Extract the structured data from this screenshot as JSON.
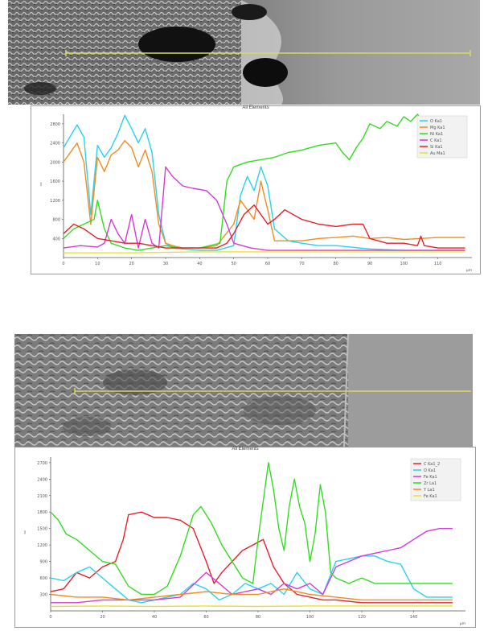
{
  "colors": {
    "red": "#e8202a",
    "cyan": "#26d4f0",
    "magenta": "#d63ad6",
    "green": "#33dd22",
    "orange": "#f28c20",
    "yellow": "#e8e030",
    "scanline": "#d8d860"
  },
  "chart_data": [
    {
      "type": "line",
      "title": "All Elements",
      "ylabel": "I",
      "xunit": "µm",
      "xlim": [
        0,
        120
      ],
      "ylim": [
        0,
        3000
      ],
      "xticks": [
        "0",
        "10",
        "20",
        "30",
        "40",
        "50",
        "60",
        "70",
        "80",
        "90",
        "100",
        "110"
      ],
      "yticks": [
        "400",
        "800",
        "1200",
        "1600",
        "2000",
        "2400",
        "2800"
      ],
      "legend_position": "top-right",
      "legend": [
        "O Ka1",
        "Mg Ka1",
        "Ni Ka1",
        "C Ka1",
        "Si Ka1",
        "Au Ma1"
      ],
      "series": [
        {
          "name": "C Ka1",
          "color": "cyan",
          "x": [
            0,
            4,
            6,
            8,
            10,
            12,
            14,
            16,
            18,
            20,
            22,
            24,
            26,
            28,
            30,
            32,
            35,
            40,
            45,
            50,
            52,
            54,
            56,
            58,
            60,
            62,
            66,
            70,
            75,
            80,
            90,
            100,
            110,
            118
          ],
          "y": [
            2300,
            2780,
            2520,
            900,
            2350,
            2100,
            2300,
            2600,
            2980,
            2700,
            2400,
            2700,
            2200,
            900,
            300,
            200,
            180,
            150,
            150,
            250,
            1300,
            1700,
            1400,
            1900,
            1500,
            600,
            350,
            300,
            250,
            250,
            180,
            150,
            150,
            150
          ]
        },
        {
          "name": "Au Ma1",
          "color": "orange",
          "x": [
            0,
            4,
            6,
            8,
            10,
            12,
            14,
            16,
            18,
            20,
            22,
            24,
            26,
            28,
            30,
            32,
            35,
            40,
            45,
            50,
            52,
            54,
            56,
            58,
            60,
            62,
            66,
            70,
            75,
            80,
            85,
            90,
            95,
            100,
            105,
            110,
            118
          ],
          "y": [
            2000,
            2400,
            2000,
            700,
            2100,
            1800,
            2150,
            2250,
            2450,
            2300,
            1900,
            2250,
            1800,
            700,
            300,
            250,
            200,
            200,
            250,
            700,
            1200,
            1000,
            800,
            1600,
            1000,
            350,
            350,
            350,
            400,
            420,
            450,
            400,
            420,
            380,
            400,
            420,
            420
          ]
        },
        {
          "name": "Si Ka1",
          "color": "green",
          "x": [
            0,
            3,
            6,
            9,
            10,
            12,
            14,
            18,
            22,
            26,
            30,
            34,
            40,
            46,
            48,
            50,
            54,
            58,
            62,
            66,
            70,
            75,
            80,
            82,
            84,
            86,
            88,
            90,
            93,
            95,
            98,
            100,
            102,
            104,
            106,
            108,
            110,
            113,
            116,
            118
          ],
          "y": [
            400,
            600,
            700,
            800,
            1200,
            600,
            300,
            200,
            150,
            200,
            250,
            200,
            200,
            300,
            1600,
            1900,
            2000,
            2050,
            2100,
            2200,
            2250,
            2350,
            2400,
            2200,
            2050,
            2300,
            2500,
            2800,
            2700,
            2850,
            2750,
            2950,
            2850,
            3000,
            2800,
            2900,
            2750,
            2900,
            2800,
            2850
          ]
        },
        {
          "name": "Ni Ka1",
          "color": "magenta",
          "x": [
            0,
            5,
            10,
            12,
            14,
            16,
            18,
            20,
            22,
            24,
            26,
            28,
            30,
            32,
            35,
            38,
            42,
            45,
            48,
            50,
            55,
            60,
            70,
            80,
            90,
            100,
            110,
            118
          ],
          "y": [
            200,
            250,
            220,
            300,
            800,
            500,
            300,
            900,
            200,
            800,
            300,
            200,
            1900,
            1700,
            1500,
            1450,
            1400,
            1200,
            700,
            300,
            200,
            150,
            150,
            150,
            150,
            150,
            150,
            150
          ]
        },
        {
          "name": "O Ka1",
          "color": "red",
          "x": [
            0,
            3,
            6,
            8,
            10,
            14,
            18,
            22,
            26,
            30,
            35,
            40,
            45,
            48,
            50,
            53,
            56,
            60,
            62,
            65,
            70,
            75,
            80,
            85,
            88,
            90,
            95,
            100,
            104,
            105,
            106,
            110,
            118
          ],
          "y": [
            500,
            700,
            600,
            500,
            400,
            350,
            300,
            300,
            250,
            200,
            200,
            200,
            200,
            300,
            500,
            900,
            1100,
            700,
            800,
            1000,
            800,
            700,
            650,
            700,
            700,
            400,
            300,
            300,
            250,
            450,
            250,
            200,
            200
          ]
        },
        {
          "name": "Mg Ka1",
          "color": "yellow",
          "x": [
            0,
            20,
            40,
            60,
            80,
            100,
            118
          ],
          "y": [
            100,
            100,
            120,
            120,
            120,
            120,
            120
          ]
        }
      ]
    },
    {
      "type": "line",
      "title": "All Elements",
      "ylabel": "I",
      "xunit": "µm",
      "xlim": [
        0,
        160
      ],
      "ylim": [
        0,
        2800
      ],
      "xticks": [
        "0",
        "20",
        "40",
        "60",
        "80",
        "100",
        "120",
        "140"
      ],
      "yticks": [
        "300",
        "600",
        "900",
        "1200",
        "1500",
        "1800",
        "2100",
        "2400",
        "2700"
      ],
      "legend_position": "top-right",
      "legend": [
        "C Ka1_2",
        "O Ka1",
        "Fe Ka1",
        "Zr La1",
        "Y La1",
        "Fe Ka1"
      ],
      "series": [
        {
          "name": "C Ka1_2",
          "color": "red",
          "x": [
            0,
            5,
            10,
            15,
            20,
            25,
            28,
            30,
            35,
            40,
            45,
            50,
            55,
            60,
            63,
            66,
            70,
            74,
            78,
            82,
            86,
            90,
            95,
            100,
            105,
            110,
            120,
            130,
            140,
            150,
            155
          ],
          "y": [
            350,
            400,
            700,
            600,
            800,
            900,
            1300,
            1750,
            1800,
            1700,
            1700,
            1650,
            1500,
            900,
            500,
            700,
            900,
            1100,
            1200,
            1300,
            800,
            500,
            300,
            250,
            200,
            200,
            150,
            150,
            150,
            150,
            150
          ]
        },
        {
          "name": "O Ka1",
          "color": "cyan",
          "x": [
            0,
            5,
            10,
            15,
            20,
            25,
            30,
            35,
            40,
            45,
            50,
            55,
            60,
            65,
            70,
            75,
            80,
            85,
            90,
            95,
            100,
            105,
            110,
            115,
            120,
            125,
            130,
            135,
            140,
            145,
            150,
            155
          ],
          "y": [
            600,
            550,
            700,
            800,
            600,
            400,
            200,
            150,
            200,
            250,
            300,
            500,
            400,
            200,
            300,
            500,
            400,
            500,
            300,
            700,
            400,
            300,
            900,
            950,
            1000,
            1000,
            900,
            850,
            400,
            250,
            250,
            250
          ]
        },
        {
          "name": "Fe Ka1",
          "color": "magenta",
          "x": [
            0,
            10,
            20,
            30,
            40,
            50,
            60,
            70,
            80,
            85,
            90,
            95,
            100,
            105,
            110,
            115,
            120,
            125,
            130,
            135,
            140,
            145,
            150,
            155
          ],
          "y": [
            150,
            150,
            200,
            200,
            200,
            250,
            700,
            300,
            400,
            300,
            500,
            400,
            500,
            300,
            800,
            900,
            1000,
            1050,
            1100,
            1150,
            1300,
            1450,
            1500,
            1500
          ]
        },
        {
          "name": "Zr La1",
          "color": "green",
          "x": [
            0,
            3,
            6,
            10,
            15,
            20,
            25,
            30,
            35,
            40,
            45,
            50,
            55,
            58,
            62,
            66,
            70,
            74,
            78,
            80,
            82,
            84,
            86,
            88,
            90,
            92,
            94,
            96,
            98,
            100,
            102,
            104,
            106,
            108,
            110,
            115,
            120,
            125,
            130,
            140,
            150,
            155
          ],
          "y": [
            1800,
            1650,
            1400,
            1300,
            1100,
            900,
            850,
            450,
            300,
            300,
            450,
            1000,
            1750,
            1900,
            1600,
            1200,
            900,
            600,
            500,
            1300,
            2000,
            2700,
            2200,
            1500,
            1100,
            1900,
            2400,
            1900,
            1600,
            900,
            1400,
            2300,
            1800,
            700,
            600,
            500,
            600,
            500,
            500,
            500,
            500,
            500
          ]
        },
        {
          "name": "Y La1",
          "color": "orange",
          "x": [
            0,
            10,
            20,
            30,
            40,
            50,
            60,
            70,
            80,
            90,
            100,
            110,
            120,
            130,
            140,
            150,
            155
          ],
          "y": [
            300,
            250,
            250,
            200,
            250,
            300,
            350,
            300,
            300,
            400,
            300,
            250,
            200,
            200,
            200,
            200,
            200
          ]
        },
        {
          "name": "Fe Ka1",
          "color": "yellow",
          "x": [
            0,
            20,
            40,
            60,
            80,
            100,
            120,
            140,
            155
          ],
          "y": [
            80,
            90,
            80,
            90,
            80,
            90,
            90,
            90,
            90
          ]
        }
      ]
    }
  ]
}
